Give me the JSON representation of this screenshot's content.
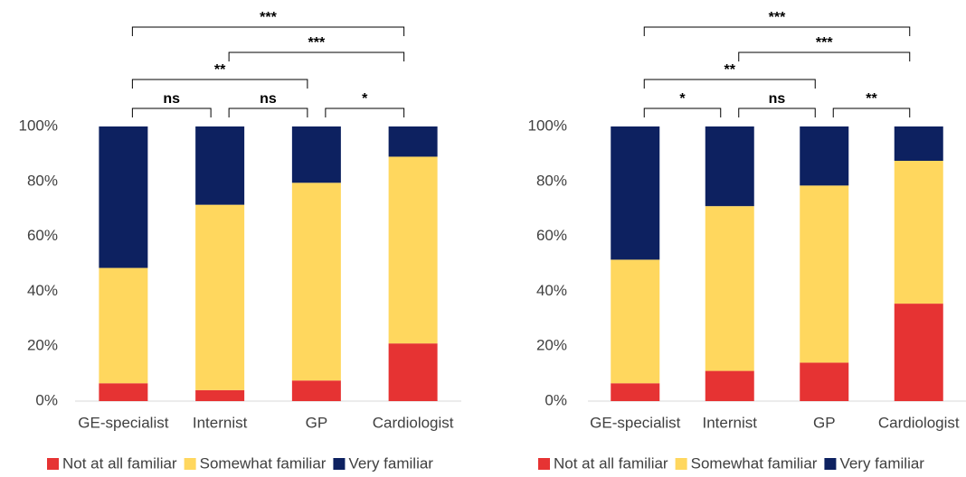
{
  "chart_data": [
    {
      "type": "bar",
      "stacked": true,
      "categories": [
        "GE-specialist",
        "Internist",
        "GP",
        "Cardiologist"
      ],
      "series": [
        {
          "name": "Not at all familiar",
          "color": "#e63333",
          "values": [
            6.5,
            4,
            7.5,
            21
          ]
        },
        {
          "name": "Somewhat familiar",
          "color": "#ffd75e",
          "values": [
            42,
            67.5,
            72,
            68
          ]
        },
        {
          "name": "Very familiar",
          "color": "#0d2160",
          "values": [
            51.5,
            28.5,
            20.5,
            11
          ]
        }
      ],
      "ylim": [
        0,
        100
      ],
      "yticks": [
        {
          "value": 0,
          "label": "0%"
        },
        {
          "value": 20,
          "label": "20%"
        },
        {
          "value": 40,
          "label": "40%"
        },
        {
          "value": 60,
          "label": "60%"
        },
        {
          "value": 80,
          "label": "80%"
        },
        {
          "value": 100,
          "label": "100%"
        }
      ],
      "annotations": [
        {
          "label": "ns",
          "between": [
            "GE-specialist",
            "Internist"
          ]
        },
        {
          "label": "ns",
          "between": [
            "Internist",
            "GP"
          ]
        },
        {
          "label": "*",
          "between": [
            "GP",
            "Cardiologist"
          ]
        },
        {
          "label": "**",
          "between": [
            "GE-specialist",
            "GP"
          ]
        },
        {
          "label": "***",
          "between": [
            "Internist",
            "Cardiologist"
          ]
        },
        {
          "label": "***",
          "between": [
            "GE-specialist",
            "Cardiologist"
          ]
        }
      ]
    },
    {
      "type": "bar",
      "stacked": true,
      "categories": [
        "GE-specialist",
        "Internist",
        "GP",
        "Cardiologist"
      ],
      "series": [
        {
          "name": "Not at all familiar",
          "color": "#e63333",
          "values": [
            6.5,
            11,
            14,
            35.5
          ]
        },
        {
          "name": "Somewhat familiar",
          "color": "#ffd75e",
          "values": [
            45,
            60,
            64.5,
            52
          ]
        },
        {
          "name": "Very familiar",
          "color": "#0d2160",
          "values": [
            48.5,
            29,
            21.5,
            12.5
          ]
        }
      ],
      "ylim": [
        0,
        100
      ],
      "yticks": [
        {
          "value": 0,
          "label": "0%"
        },
        {
          "value": 20,
          "label": "20%"
        },
        {
          "value": 40,
          "label": "40%"
        },
        {
          "value": 60,
          "label": "60%"
        },
        {
          "value": 80,
          "label": "80%"
        },
        {
          "value": 100,
          "label": "100%"
        }
      ],
      "annotations": [
        {
          "label": "*",
          "between": [
            "GE-specialist",
            "Internist"
          ]
        },
        {
          "label": "ns",
          "between": [
            "Internist",
            "GP"
          ]
        },
        {
          "label": "**",
          "between": [
            "GP",
            "Cardiologist"
          ]
        },
        {
          "label": "**",
          "between": [
            "GE-specialist",
            "GP"
          ]
        },
        {
          "label": "***",
          "between": [
            "Internist",
            "Cardiologist"
          ]
        },
        {
          "label": "***",
          "between": [
            "GE-specialist",
            "Cardiologist"
          ]
        }
      ]
    }
  ]
}
